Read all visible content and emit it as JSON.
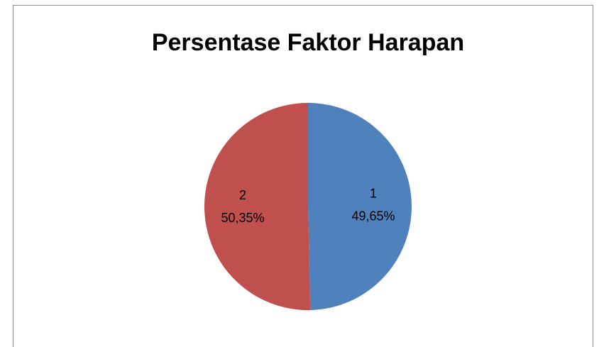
{
  "chart_data": {
    "type": "pie",
    "title": "Persentase Faktor Harapan",
    "categories": [
      "1",
      "2"
    ],
    "values": [
      49.65,
      50.35
    ],
    "value_labels": [
      "49,65%",
      "50,35%"
    ],
    "colors": [
      "#4f81bd",
      "#c0504d"
    ]
  }
}
